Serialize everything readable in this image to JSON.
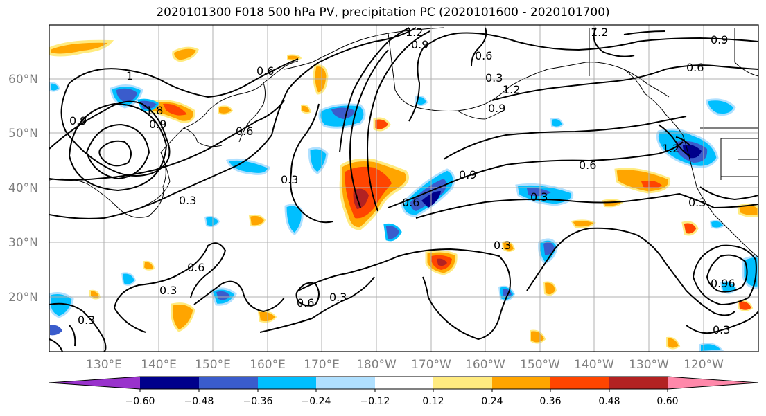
{
  "title": "2020101300 F018 500 hPa PV, precipitation PC (2020101600 - 2020101700)",
  "lat_labels": [
    "60°N",
    "50°N",
    "40°N",
    "30°N",
    "20°N"
  ],
  "lon_labels": [
    "130°E",
    "140°E",
    "150°E",
    "160°E",
    "170°E",
    "180°W",
    "170°W",
    "160°W",
    "150°W",
    "140°W",
    "130°W",
    "120°W"
  ],
  "colorbar": {
    "colors": [
      "#9932cc",
      "#00008b",
      "#3a5ccc",
      "#00bfff",
      "#b0e0ff",
      "#ffffff",
      "#ffeb80",
      "#ffa500",
      "#ff4500",
      "#b22222",
      "#ff88aa"
    ],
    "tick_labels": [
      "−0.60",
      "−0.48",
      "−0.36",
      "−0.24",
      "−0.12",
      "0.12",
      "0.24",
      "0.36",
      "0.48",
      "0.60"
    ]
  },
  "contour_labels": [
    "1.2",
    "0.9",
    "0.6",
    "0.6",
    "0.9",
    "1.2",
    "1",
    "0.9",
    "1.8",
    "0.9",
    "0.6",
    "0.3",
    "0.6",
    "0.3",
    "0.9",
    "1.2",
    "0.3",
    "0.6",
    "0.3",
    "1.2",
    "0.9",
    "0.3",
    "0.6",
    "0.3",
    "0.6",
    "0.3",
    "0.96",
    "0.3",
    "0.3",
    "0.6",
    "0.3"
  ]
}
